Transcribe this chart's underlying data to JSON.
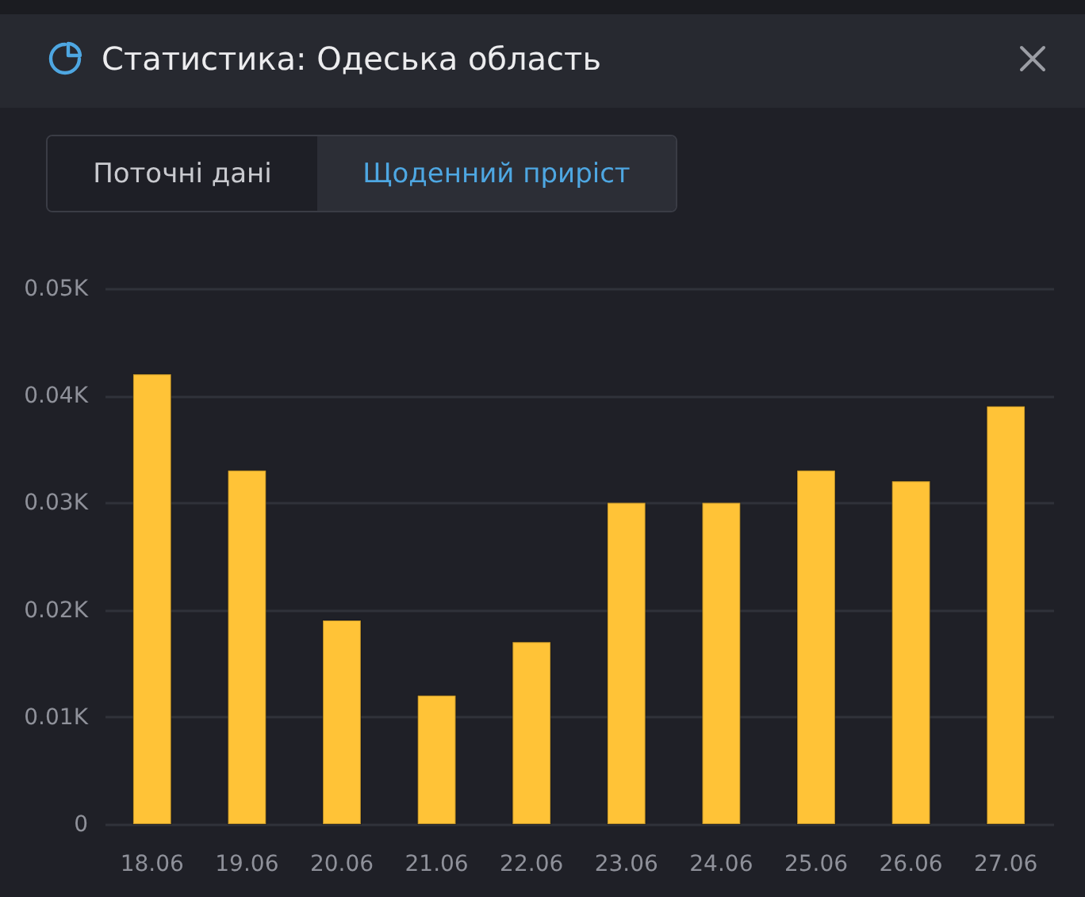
{
  "chart_data": {
    "type": "bar",
    "title": "Статистика: Одеська область",
    "annotations": [
      "Поточні дані",
      "Щоденний приріст"
    ],
    "categories": [
      "18.06",
      "19.06",
      "20.06",
      "21.06",
      "22.06",
      "23.06",
      "24.06",
      "25.06",
      "26.06",
      "27.06"
    ],
    "values": [
      42,
      33,
      19,
      12,
      17,
      30,
      30,
      33,
      32,
      39
    ],
    "color": "#ffc337",
    "ylim": [
      0,
      50
    ],
    "yticks": [
      0,
      {
        "value": 10,
        "label": "0.01K"
      },
      {
        "value": 20,
        "label": "0.02K"
      },
      {
        "value": 30,
        "label": "0.03K"
      },
      {
        "value": 40,
        "label": "0.04K"
      },
      {
        "value": 50,
        "label": "0.05K"
      }
    ],
    "grid": "y"
  }
}
